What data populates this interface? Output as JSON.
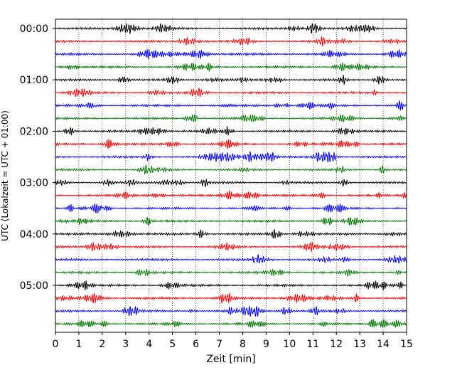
{
  "chart_data": {
    "type": "line",
    "title": "",
    "xlabel": "Zeit  [min]",
    "ylabel": "UTC (Lokalzeit = UTC + 01:00)",
    "xlim": [
      0,
      15
    ],
    "x_ticks": [
      0,
      1,
      2,
      3,
      4,
      5,
      6,
      7,
      8,
      9,
      10,
      11,
      12,
      13,
      14,
      15
    ],
    "y_tick_labels": [
      "00:00",
      "01:00",
      "02:00",
      "03:00",
      "04:00",
      "05:00"
    ],
    "grid": "vertical dotted lines at each minute",
    "trace_colors": [
      "#000000",
      "#ff0000",
      "#0000ff",
      "#007700"
    ],
    "rows": [
      {
        "start": "00:00",
        "color": "#000000"
      },
      {
        "start": "00:15",
        "color": "#ff0000"
      },
      {
        "start": "00:30",
        "color": "#0000ff"
      },
      {
        "start": "00:45",
        "color": "#007700"
      },
      {
        "start": "01:00",
        "color": "#000000"
      },
      {
        "start": "01:15",
        "color": "#ff0000"
      },
      {
        "start": "01:30",
        "color": "#0000ff"
      },
      {
        "start": "01:45",
        "color": "#007700"
      },
      {
        "start": "02:00",
        "color": "#000000"
      },
      {
        "start": "02:15",
        "color": "#ff0000"
      },
      {
        "start": "02:30",
        "color": "#0000ff"
      },
      {
        "start": "02:45",
        "color": "#007700"
      },
      {
        "start": "03:00",
        "color": "#000000"
      },
      {
        "start": "03:15",
        "color": "#ff0000"
      },
      {
        "start": "03:30",
        "color": "#0000ff"
      },
      {
        "start": "03:45",
        "color": "#007700"
      },
      {
        "start": "04:00",
        "color": "#000000"
      },
      {
        "start": "04:15",
        "color": "#ff0000"
      },
      {
        "start": "04:30",
        "color": "#0000ff"
      },
      {
        "start": "04:45",
        "color": "#007700"
      },
      {
        "start": "05:00",
        "color": "#000000"
      },
      {
        "start": "05:15",
        "color": "#ff0000"
      },
      {
        "start": "05:30",
        "color": "#0000ff"
      },
      {
        "start": "05:45",
        "color": "#007700"
      }
    ]
  }
}
